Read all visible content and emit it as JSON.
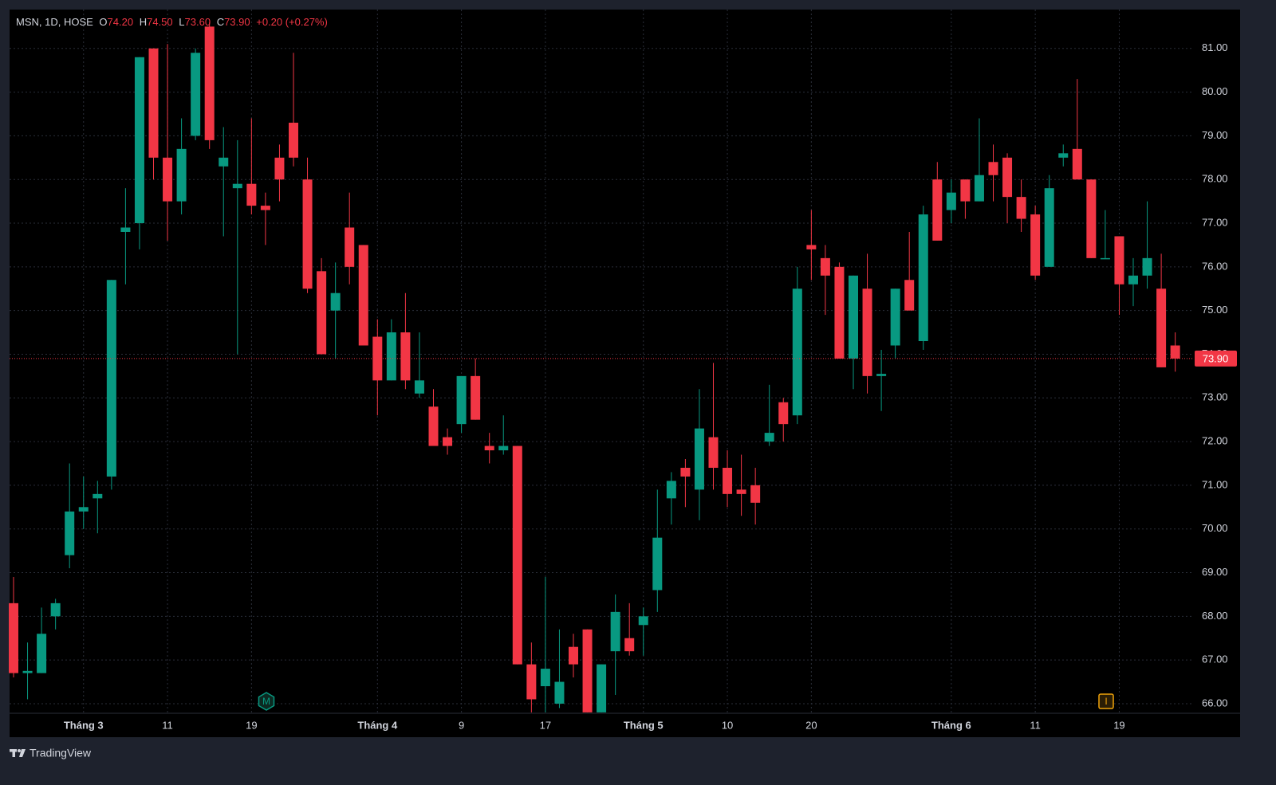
{
  "header": {
    "symbol": "MSN, 1D, HOSE",
    "o_label": "O",
    "open": "74.20",
    "h_label": "H",
    "high": "74.50",
    "l_label": "L",
    "low": "73.60",
    "c_label": "C",
    "close": "73.90",
    "change": "+0.20 (+0.27%)"
  },
  "footer": {
    "brand": "TradingView"
  },
  "chart_data": {
    "type": "candlestick",
    "up_color": "#089981",
    "down_color": "#f23645",
    "categories": [
      null,
      null,
      null,
      null,
      null,
      "Tháng 3",
      null,
      null,
      null,
      null,
      null,
      "11",
      null,
      null,
      null,
      null,
      null,
      "19",
      null,
      null,
      null,
      null,
      null,
      null,
      null,
      null,
      "Tháng 4",
      null,
      null,
      null,
      null,
      null,
      "9",
      null,
      null,
      null,
      null,
      null,
      "17",
      null,
      null,
      null,
      null,
      null,
      null,
      "Tháng 5",
      null,
      null,
      null,
      null,
      null,
      "10",
      null,
      null,
      null,
      null,
      null,
      "20",
      null,
      null,
      null,
      null,
      null,
      null,
      null,
      null,
      null,
      "Tháng 6",
      null,
      null,
      null,
      null,
      null,
      "11",
      null,
      null,
      null,
      null,
      null,
      "19",
      null,
      null,
      null,
      null
    ],
    "open": [
      68.3,
      66.7,
      66.7,
      68.0,
      69.4,
      70.4,
      70.7,
      71.2,
      76.8,
      77.0,
      81.0,
      78.5,
      77.5,
      79.0,
      81.5,
      78.3,
      77.8,
      77.9,
      77.4,
      78.5,
      79.3,
      78.0,
      75.9,
      75.0,
      76.9,
      76.5,
      74.4,
      73.4,
      74.5,
      73.1,
      72.8,
      72.1,
      72.4,
      73.5,
      71.9,
      71.8,
      71.9,
      66.9,
      66.4,
      66.0,
      67.3,
      67.7,
      65.8,
      67.2,
      67.5,
      67.8,
      68.6,
      70.7,
      71.4,
      70.9,
      72.1,
      71.4,
      70.9,
      71.0,
      72.0,
      72.9,
      72.6,
      76.5,
      76.2,
      76.0,
      73.9,
      75.5,
      73.5,
      74.2,
      75.7,
      74.3,
      78.0,
      77.3,
      78.0,
      77.5,
      78.4,
      78.5,
      77.6,
      77.2,
      76.0,
      78.5,
      78.7,
      78.0,
      76.18,
      76.7,
      75.6,
      75.8,
      75.5,
      74.2
    ],
    "high": [
      68.9,
      67.4,
      68.2,
      68.4,
      71.5,
      71.2,
      71.1,
      75.7,
      77.8,
      80.8,
      81.0,
      81.1,
      79.4,
      81.0,
      81.6,
      79.2,
      78.9,
      79.4,
      77.7,
      78.8,
      80.9,
      78.5,
      76.2,
      76.1,
      77.7,
      76.5,
      74.8,
      74.8,
      75.4,
      74.5,
      73.2,
      72.3,
      73.5,
      73.9,
      72.2,
      72.6,
      71.9,
      67.4,
      68.9,
      67.7,
      67.6,
      67.7,
      66.9,
      68.5,
      68.3,
      68.2,
      70.9,
      71.3,
      71.6,
      73.2,
      73.8,
      71.8,
      71.7,
      71.4,
      73.3,
      73.0,
      76.0,
      77.3,
      76.5,
      76.1,
      75.8,
      76.3,
      74.1,
      75.5,
      76.8,
      77.4,
      78.4,
      78.0,
      78.0,
      79.4,
      78.8,
      78.6,
      78.0,
      77.4,
      78.1,
      78.8,
      80.3,
      78.0,
      77.3,
      76.7,
      76.2,
      77.5,
      76.3,
      74.5
    ],
    "low": [
      66.6,
      66.1,
      66.7,
      67.7,
      69.1,
      70.0,
      69.9,
      70.9,
      75.6,
      76.4,
      78.0,
      76.6,
      77.2,
      78.9,
      78.7,
      76.7,
      74.0,
      77.2,
      76.5,
      77.5,
      78.3,
      75.4,
      74.0,
      73.9,
      75.6,
      74.2,
      72.6,
      73.4,
      73.2,
      73.0,
      71.9,
      71.7,
      72.2,
      72.5,
      71.5,
      71.7,
      66.9,
      65.8,
      65.8,
      65.9,
      66.6,
      65.8,
      65.8,
      66.2,
      67.1,
      67.1,
      68.1,
      70.1,
      70.5,
      70.2,
      70.9,
      70.5,
      70.3,
      70.1,
      71.9,
      72.0,
      72.4,
      75.7,
      74.9,
      73.9,
      73.2,
      73.1,
      72.7,
      73.9,
      75.0,
      74.1,
      76.6,
      77.0,
      77.1,
      77.5,
      77.5,
      77.0,
      76.8,
      75.7,
      76.0,
      78.3,
      78.0,
      76.2,
      76.2,
      74.9,
      75.1,
      75.5,
      73.7,
      73.6
    ],
    "close": [
      66.7,
      66.75,
      67.6,
      68.3,
      70.4,
      70.5,
      70.8,
      75.7,
      76.9,
      80.8,
      78.5,
      77.5,
      78.7,
      80.9,
      78.9,
      78.5,
      77.9,
      77.4,
      77.3,
      78.0,
      78.5,
      75.5,
      74.0,
      75.4,
      76.0,
      74.2,
      73.4,
      74.5,
      73.4,
      73.4,
      71.9,
      71.9,
      73.5,
      72.5,
      71.8,
      71.9,
      66.9,
      66.1,
      66.8,
      66.5,
      66.9,
      65.8,
      66.9,
      68.1,
      67.2,
      68.0,
      69.8,
      71.1,
      71.2,
      72.3,
      71.4,
      70.8,
      70.8,
      70.6,
      72.2,
      72.4,
      75.5,
      76.4,
      75.8,
      73.9,
      75.8,
      73.5,
      73.55,
      75.5,
      75.0,
      77.2,
      76.6,
      77.7,
      77.5,
      78.1,
      78.1,
      77.6,
      77.1,
      75.8,
      77.8,
      78.6,
      78.0,
      76.2,
      76.2,
      75.6,
      75.8,
      76.2,
      73.7,
      73.9
    ],
    "ylim": [
      65.78,
      81.89
    ],
    "yticks": [
      {
        "value": 66,
        "label": "66.00"
      },
      {
        "value": 67,
        "label": "67.00"
      },
      {
        "value": 68,
        "label": "68.00"
      },
      {
        "value": 69,
        "label": "69.00"
      },
      {
        "value": 70,
        "label": "70.00"
      },
      {
        "value": 71,
        "label": "71.00"
      },
      {
        "value": 72,
        "label": "72.00"
      },
      {
        "value": 73,
        "label": "73.00"
      },
      {
        "value": 74,
        "label": "74.00"
      },
      {
        "value": 75,
        "label": "75.00"
      },
      {
        "value": 76,
        "label": "76.00"
      },
      {
        "value": 77,
        "label": "77.00"
      },
      {
        "value": 78,
        "label": "78.00"
      },
      {
        "value": 79,
        "label": "79.00"
      },
      {
        "value": 80,
        "label": "80.00"
      },
      {
        "value": 81,
        "label": "81.00"
      }
    ],
    "grid": true,
    "last_price": {
      "value": 73.9,
      "label": "73.90"
    },
    "event_markers": [
      "M",
      "I"
    ]
  }
}
